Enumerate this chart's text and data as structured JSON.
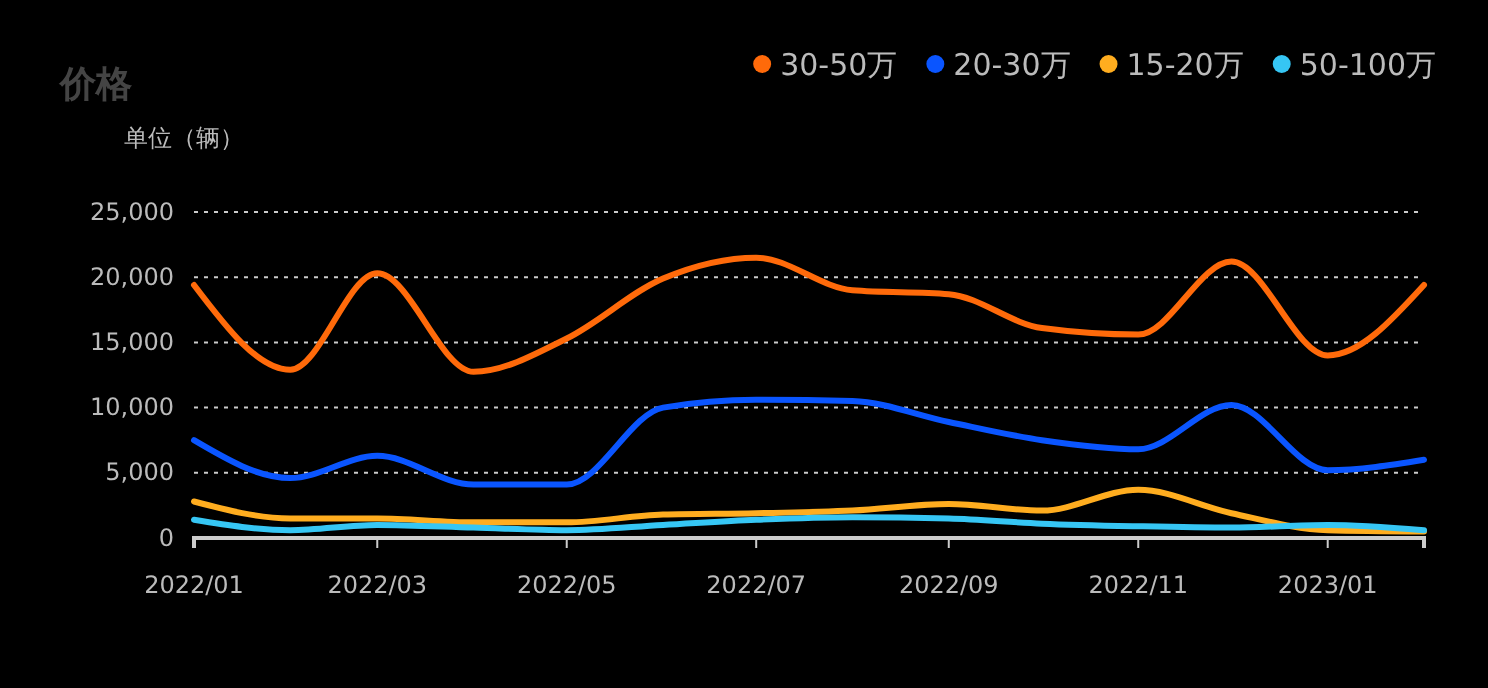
{
  "chart_data": {
    "type": "line",
    "title": "价格",
    "ylabel": "单位（辆）",
    "x": [
      "2022-01",
      "2022-02",
      "2022-03",
      "2022-04",
      "2022-05",
      "2022-06",
      "2022-07",
      "2022-08",
      "2022-09",
      "2022-10",
      "2022-11",
      "2022-12",
      "2023-01",
      "2023-02"
    ],
    "xlim": [
      "2022-01",
      "2023-02"
    ],
    "xticks": [
      {
        "value": "2022-01",
        "label": "2022/01"
      },
      {
        "value": "2022-03",
        "label": "2022/03"
      },
      {
        "value": "2022-05",
        "label": "2022/05"
      },
      {
        "value": "2022-07",
        "label": "2022/07"
      },
      {
        "value": "2022-09",
        "label": "2022/09"
      },
      {
        "value": "2022-11",
        "label": "2022/11"
      },
      {
        "value": "2023-01",
        "label": "2023/01"
      }
    ],
    "ylim": [
      0,
      25000
    ],
    "yticks": [
      {
        "value": 0,
        "label": "0"
      },
      {
        "value": 5000,
        "label": "5,000"
      },
      {
        "value": 10000,
        "label": "10,000"
      },
      {
        "value": 15000,
        "label": "15,000"
      },
      {
        "value": 20000,
        "label": "20,000"
      },
      {
        "value": 25000,
        "label": "25,000"
      }
    ],
    "grid": "y",
    "legend": "top right",
    "marker": "none",
    "line_style": "solid",
    "series": [
      {
        "name": "30-50万",
        "color": "#ff6a0a",
        "values": [
          19400,
          12900,
          20300,
          12750,
          15300,
          19900,
          21500,
          19000,
          18700,
          16100,
          15600,
          21200,
          14000,
          19400
        ]
      },
      {
        "name": "20-30万",
        "color": "#0a55ff",
        "values": [
          7500,
          4600,
          6300,
          4100,
          4100,
          10000,
          10600,
          10500,
          8900,
          7500,
          6800,
          10200,
          5200,
          6000
        ]
      },
      {
        "name": "15-20万",
        "color": "#ffad1f",
        "values": [
          2800,
          1500,
          1500,
          1200,
          1200,
          1800,
          1900,
          2100,
          2600,
          2100,
          3700,
          1900,
          600,
          500
        ]
      },
      {
        "name": "50-100万",
        "color": "#36c6f4",
        "values": [
          1400,
          600,
          1000,
          800,
          600,
          1000,
          1400,
          1600,
          1500,
          1100,
          900,
          800,
          1000,
          600
        ]
      }
    ]
  }
}
